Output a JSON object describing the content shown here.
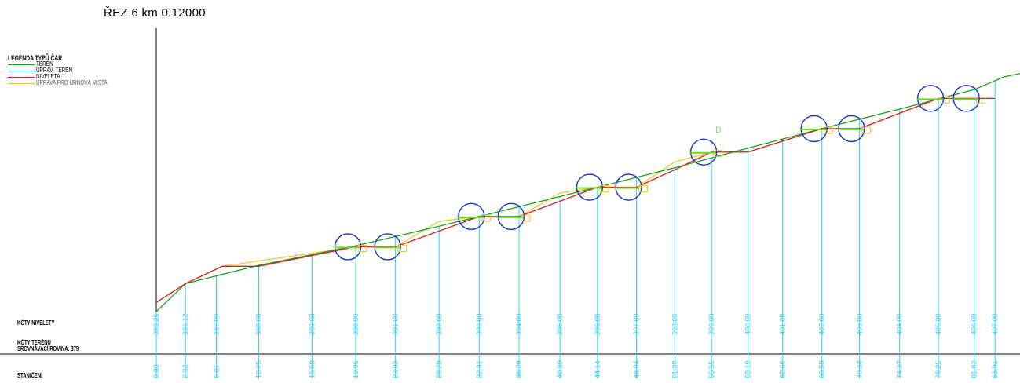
{
  "section": {
    "title": "ŘEZ 6 km 0.12000",
    "marker_letter": "D"
  },
  "legend": {
    "title": "LEGENDA TYPŮ ČAR",
    "items": [
      {
        "label": "TERÉN",
        "color": "#1e9e1e"
      },
      {
        "label": "UPRAV. TERÉN",
        "color": "#33ccff"
      },
      {
        "label": "NIVELETA",
        "color": "#d42020"
      },
      {
        "label": "ÚPRAVA PRO URNOVÁ MÍSTA",
        "color": "#f2c12e"
      }
    ]
  },
  "rows": {
    "nivelety": "KÓTY NIVELETY",
    "terenu": "KÓTY TERÉNU",
    "rovina": "SROVNÁVACÍ ROVINA: 379",
    "staniceni": "STANIČENÍ"
  },
  "chart_data": {
    "type": "line",
    "title": "ŘEZ 6 km 0.12000",
    "datum": 379,
    "stations": [
      0.0,
      2.92,
      6.01,
      10.25,
      15.59,
      19.96,
      23.93,
      28.29,
      32.31,
      36.29,
      40.39,
      44.14,
      48.04,
      51.88,
      55.55,
      59.19,
      62.66,
      66.59,
      70.34,
      74.37,
      78.25,
      81.83,
      83.91
    ],
    "terrain_labels": [
      "383.26",
      "386.12",
      "387.00",
      "388.00",
      "389.00",
      "390.00",
      "391.00",
      "392.00",
      "393.00",
      "394.00",
      "395.00",
      "396.00",
      "397.00",
      "398.00",
      "399.00",
      "400.00",
      "401.00",
      "402.00",
      "403.00",
      "404.00",
      "405.00",
      "406.00",
      "407.00"
    ],
    "series": [
      {
        "name": "TERÉN",
        "color": "#1e9e1e",
        "stations": [
          0.0,
          2.92,
          10.25,
          19.96,
          28.29,
          36.29,
          44.14,
          51.88,
          59.19,
          66.59,
          74.37,
          81.83,
          84.8,
          88.0
        ],
        "elevations": [
          383.26,
          386.12,
          388.0,
          390.0,
          392.0,
          394.0,
          396.0,
          398.0,
          400.0,
          402.0,
          404.0,
          406.0,
          407.3,
          408.0
        ]
      },
      {
        "name": "NIVELETA",
        "color": "#d42020",
        "stations": [
          0.0,
          2.92,
          6.6,
          10.25,
          19.96,
          23.93,
          32.31,
          36.29,
          44.14,
          48.04,
          51.88,
          55.55,
          59.19,
          66.59,
          70.34,
          78.25,
          81.83,
          83.91
        ],
        "elevations": [
          384.2,
          386.12,
          387.9,
          387.9,
          389.9,
          389.9,
          393.0,
          393.0,
          396.0,
          396.0,
          397.8,
          399.6,
          399.6,
          402.0,
          402.0,
          405.1,
          405.1,
          405.1
        ]
      },
      {
        "name": "ÚPRAVA PRO URNOVÁ MÍSTA",
        "color": "#f2c12e",
        "stations": [
          0.0,
          2.92,
          6.6,
          19.96,
          23.93,
          28.29,
          32.31,
          36.29,
          40.39,
          44.14,
          48.04,
          51.88,
          55.55,
          59.19,
          66.59,
          70.34,
          74.37,
          78.25,
          81.83,
          83.91
        ],
        "elevations": [
          384.2,
          386.12,
          387.9,
          389.9,
          389.9,
          392.5,
          393.0,
          393.0,
          395.4,
          396.0,
          396.0,
          398.6,
          399.6,
          399.6,
          402.0,
          402.0,
          403.6,
          405.1,
          405.1,
          405.1
        ]
      }
    ],
    "urn_places": [
      19.96,
      23.93,
      32.31,
      36.29,
      44.14,
      48.04,
      55.55,
      66.59,
      70.34,
      78.25,
      81.83
    ]
  }
}
